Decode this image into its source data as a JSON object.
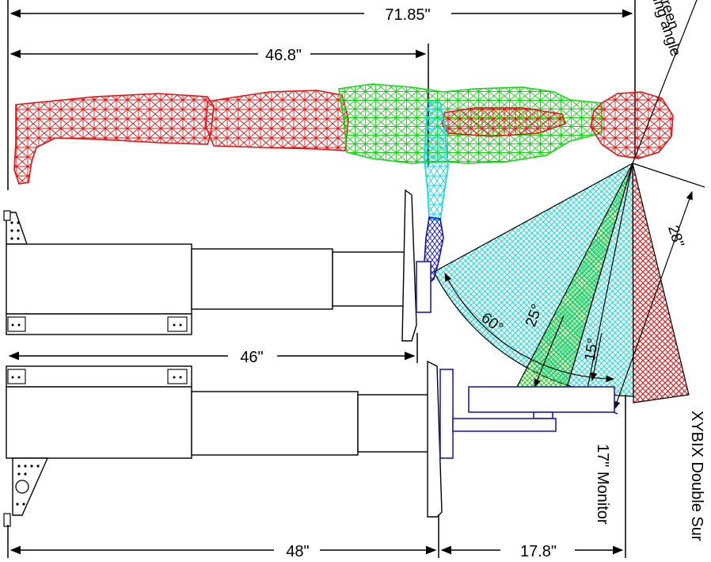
{
  "dimensions": {
    "overall": "71.85\"",
    "shoulder": "46.8\"",
    "desk_depth": "46\"",
    "base_depth": "48\"",
    "monitor_offset": "17.8\"",
    "eye_distance": "28\""
  },
  "angles": {
    "wide": "60°",
    "middle": "25°",
    "narrow": "15°"
  },
  "labels": {
    "viewing_angle": "Viewing angle",
    "to_screen": "to screen",
    "monitor": "17\" Monitor",
    "product": "XYBIX Double Sur"
  },
  "colors": {
    "legs_head": "#e81010",
    "torso": "#10e010",
    "arm": "#10e0e0",
    "hand": "#1010d0",
    "fov_wide": "#30e0e0",
    "fov_mid": "#30e030",
    "fov_narrow": "#e01010"
  }
}
